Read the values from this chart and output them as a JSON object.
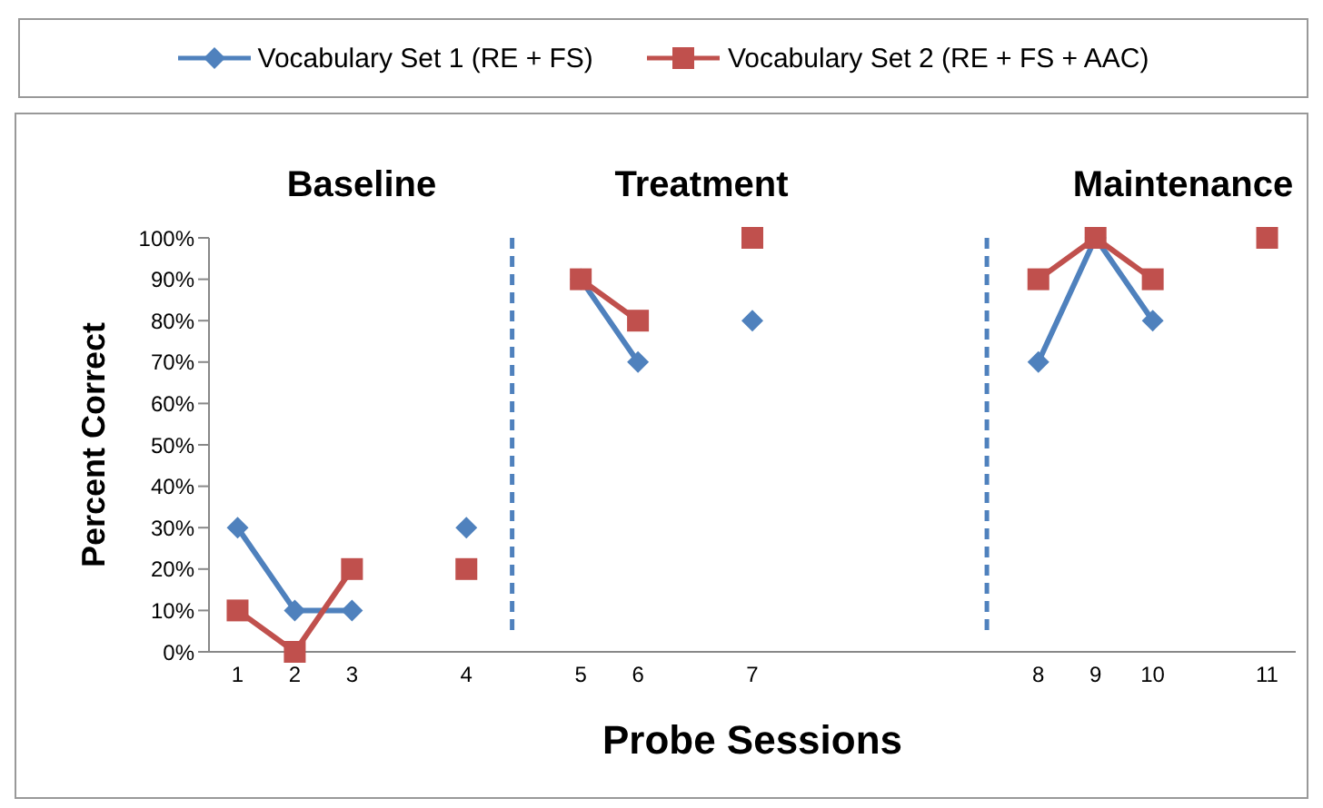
{
  "chart_data": {
    "type": "line",
    "xlabel": "Probe Sessions",
    "ylabel": "Percent Correct",
    "annotations": [
      "Baseline",
      "Treatment",
      "Maintenance"
    ],
    "categories": [
      "1",
      "2",
      "3",
      null,
      "4",
      null,
      "5",
      "6",
      null,
      "7",
      null,
      null,
      null,
      null,
      "8",
      "9",
      "10",
      null,
      "11"
    ],
    "ylim": [
      0,
      100
    ],
    "yticks": [
      {
        "value": 0,
        "label": "0%"
      },
      {
        "value": 10,
        "label": "10%"
      },
      {
        "value": 20,
        "label": "20%"
      },
      {
        "value": 30,
        "label": "30%"
      },
      {
        "value": 40,
        "label": "40%"
      },
      {
        "value": 50,
        "label": "50%"
      },
      {
        "value": 60,
        "label": "60%"
      },
      {
        "value": 70,
        "label": "70%"
      },
      {
        "value": 80,
        "label": "80%"
      },
      {
        "value": 90,
        "label": "90%"
      },
      {
        "value": 100,
        "label": "100%"
      }
    ],
    "series": [
      {
        "name": "Vocabulary Set 1 (RE + FS)",
        "color": "#4f81bd",
        "marker": "diamond",
        "values": [
          30,
          10,
          10,
          null,
          30,
          null,
          90,
          70,
          null,
          80,
          null,
          null,
          null,
          null,
          70,
          100,
          80,
          null,
          null
        ]
      },
      {
        "name": "Vocabulary Set 2 (RE + FS + AAC)",
        "color": "#c0504d",
        "marker": "square",
        "values": [
          10,
          0,
          20,
          null,
          20,
          null,
          90,
          80,
          null,
          100,
          null,
          null,
          null,
          null,
          90,
          100,
          90,
          null,
          100
        ]
      }
    ],
    "legend": "top",
    "line_style": "solid"
  }
}
